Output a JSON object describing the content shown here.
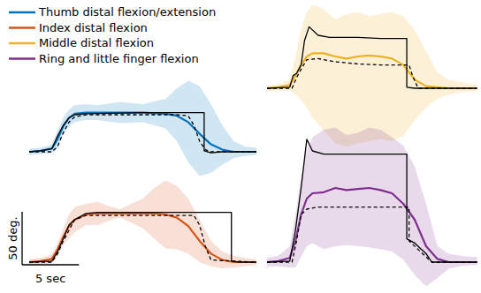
{
  "chart_data": [
    {
      "type": "line",
      "xlim": [
        0,
        20
      ],
      "ylim": [
        -25,
        70
      ],
      "tick_labels": false,
      "series": [
        {
          "color": "#000000",
          "line_style": "solid",
          "x": [
            0,
            1,
            2,
            2.5,
            3,
            3.5,
            4,
            5,
            10,
            15.4,
            15.4,
            16,
            17,
            20
          ],
          "values": [
            0,
            1,
            3,
            15,
            25,
            32,
            35,
            36,
            37,
            37,
            1,
            -1,
            0,
            0
          ]
        },
        {
          "color": "#000000",
          "line_style": "dashed",
          "x": [
            0,
            2,
            2.5,
            3,
            3.5,
            4,
            5,
            13,
            14,
            14.5,
            15,
            15.5,
            16,
            20
          ],
          "values": [
            0,
            0,
            5,
            18,
            28,
            33,
            35,
            35,
            34,
            25,
            10,
            2,
            0,
            0
          ]
        },
        {
          "name": "Thumb distal flexion/extension",
          "color": "#0072bd",
          "line_style": "solid",
          "x": [
            0,
            1,
            2,
            2.5,
            3,
            3.5,
            4,
            5,
            6,
            8,
            10,
            12,
            13,
            14,
            15,
            16,
            17,
            18,
            19,
            20
          ],
          "values": [
            0,
            1,
            3,
            12,
            24,
            32,
            36,
            37,
            37,
            37,
            37,
            36,
            34,
            28,
            17,
            7,
            2,
            0,
            0,
            0
          ],
          "upper": [
            3,
            4,
            7,
            20,
            32,
            40,
            44,
            45,
            44,
            47,
            45,
            50,
            60,
            67,
            62,
            45,
            25,
            10,
            5,
            4
          ],
          "lower": [
            -3,
            -2,
            -1,
            4,
            16,
            24,
            28,
            30,
            30,
            27,
            28,
            22,
            10,
            -10,
            -23,
            -20,
            -12,
            -6,
            -4,
            -3
          ]
        }
      ]
    },
    {
      "type": "line",
      "xlim": [
        0,
        20
      ],
      "ylim": [
        -10,
        80
      ],
      "tick_labels": false,
      "scale_bar": {
        "x": 5,
        "x_label": "5 sec",
        "y": 50,
        "y_label": "50 deg."
      },
      "series": [
        {
          "color": "#000000",
          "line_style": "solid",
          "x": [
            0,
            2,
            2.5,
            3,
            3.5,
            4,
            5,
            6,
            17.8,
            17.8,
            18.5,
            20
          ],
          "values": [
            0,
            1,
            10,
            22,
            35,
            40,
            46,
            47,
            47,
            1,
            0,
            0
          ]
        },
        {
          "color": "#000000",
          "line_style": "dashed",
          "x": [
            0,
            2,
            2.5,
            3,
            3.5,
            4,
            5,
            14.5,
            15,
            15.5,
            16,
            20
          ],
          "values": [
            0,
            0,
            8,
            20,
            30,
            40,
            44,
            44,
            35,
            15,
            2,
            0
          ]
        },
        {
          "name": "Index distal flexion",
          "color": "#d95319",
          "line_style": "solid",
          "x": [
            0,
            1,
            2,
            2.5,
            3,
            3.5,
            4,
            5,
            6,
            7,
            8,
            9,
            10,
            11,
            12,
            13,
            14,
            15,
            16,
            17,
            18,
            19,
            20
          ],
          "values": [
            0,
            1,
            3,
            12,
            24,
            34,
            40,
            45,
            46,
            46,
            46,
            46,
            46,
            46,
            45,
            42,
            34,
            20,
            8,
            2,
            0,
            0,
            0
          ],
          "upper": [
            3,
            4,
            7,
            18,
            32,
            45,
            52,
            55,
            57,
            53,
            50,
            55,
            60,
            70,
            77,
            72,
            60,
            40,
            20,
            10,
            6,
            4,
            3
          ],
          "lower": [
            -3,
            -2,
            -1,
            6,
            16,
            23,
            28,
            35,
            35,
            39,
            42,
            37,
            32,
            22,
            13,
            12,
            8,
            0,
            -4,
            -6,
            -5,
            -4,
            -3
          ]
        }
      ]
    },
    {
      "type": "line",
      "xlim": [
        0,
        18.5
      ],
      "ylim": [
        -60,
        80
      ],
      "tick_labels": false,
      "series": [
        {
          "color": "#000000",
          "line_style": "solid",
          "x": [
            0,
            2,
            2.3,
            2.6,
            3,
            3.3,
            3.7,
            4.5,
            5.5,
            8,
            10,
            12.3,
            12.3,
            13,
            18.5
          ],
          "values": [
            0,
            1,
            12,
            14,
            22,
            45,
            58,
            50,
            48,
            48,
            47,
            47,
            1,
            0,
            0
          ]
        },
        {
          "color": "#000000",
          "line_style": "dashed",
          "x": [
            0,
            2.2,
            2.6,
            3,
            3.5,
            4.5,
            6,
            8,
            10,
            12.5,
            12.8,
            13.3,
            18.5
          ],
          "values": [
            0,
            0,
            10,
            18,
            27,
            28,
            25,
            23,
            22,
            22,
            12,
            0,
            0
          ]
        },
        {
          "name": "Middle distal flexion",
          "color": "#edb120",
          "line_style": "solid",
          "x": [
            0,
            1,
            2,
            2.5,
            3,
            3.5,
            4,
            5,
            6,
            7,
            8,
            9,
            10,
            11,
            12,
            13,
            14,
            15,
            16,
            17,
            18,
            18.5
          ],
          "values": [
            0,
            1,
            3,
            12,
            22,
            30,
            33,
            33,
            30,
            28,
            30,
            31,
            30,
            28,
            22,
            8,
            2,
            1,
            0,
            0,
            0,
            0
          ],
          "upper": [
            3,
            4,
            8,
            30,
            55,
            72,
            79,
            75,
            65,
            70,
            72,
            68,
            70,
            72,
            68,
            55,
            35,
            15,
            8,
            6,
            4,
            4
          ],
          "lower": [
            -3,
            -2,
            -2,
            -6,
            -11,
            -18,
            -28,
            -40,
            -52,
            -55,
            -52,
            -50,
            -48,
            -50,
            -45,
            -30,
            -18,
            -10,
            -6,
            -4,
            -3,
            -3
          ]
        }
      ]
    },
    {
      "type": "line",
      "xlim": [
        0,
        18.5
      ],
      "ylim": [
        -25,
        130
      ],
      "tick_labels": false,
      "series": [
        {
          "color": "#000000",
          "line_style": "solid",
          "x": [
            0,
            2,
            2.5,
            3,
            3.5,
            4,
            5,
            8,
            12.3,
            12.3,
            13,
            14,
            14.5,
            18.5
          ],
          "values": [
            0,
            1,
            30,
            70,
            116,
            105,
            102,
            102,
            102,
            22,
            18,
            8,
            0,
            0
          ]
        },
        {
          "color": "#000000",
          "line_style": "dashed",
          "x": [
            0,
            2.2,
            2.6,
            3,
            3.5,
            4.5,
            6,
            8,
            10,
            12.5,
            12.5,
            13.5,
            14.5,
            18.5
          ],
          "values": [
            0,
            0,
            20,
            45,
            50,
            52,
            52,
            52,
            52,
            52,
            20,
            10,
            0,
            0
          ]
        },
        {
          "name": "Ring and little finger flexion",
          "color": "#7e2f8e",
          "line_style": "solid",
          "x": [
            0,
            1,
            2,
            2.5,
            3,
            3.5,
            4,
            5,
            6,
            7,
            8,
            9,
            10,
            11,
            12,
            13,
            14,
            15,
            16,
            17,
            18,
            18.5
          ],
          "values": [
            0,
            1,
            4,
            20,
            45,
            60,
            65,
            66,
            70,
            68,
            69,
            70,
            68,
            65,
            55,
            40,
            15,
            3,
            0,
            0,
            0,
            0
          ],
          "upper": [
            4,
            6,
            15,
            45,
            80,
            105,
            118,
            125,
            127,
            120,
            122,
            127,
            125,
            118,
            110,
            90,
            55,
            15,
            8,
            6,
            5,
            5
          ],
          "lower": [
            -4,
            -4,
            -5,
            -5,
            5,
            15,
            18,
            12,
            15,
            16,
            15,
            14,
            12,
            10,
            2,
            -12,
            -23,
            -15,
            -6,
            -4,
            -3,
            -3
          ]
        }
      ]
    }
  ]
}
